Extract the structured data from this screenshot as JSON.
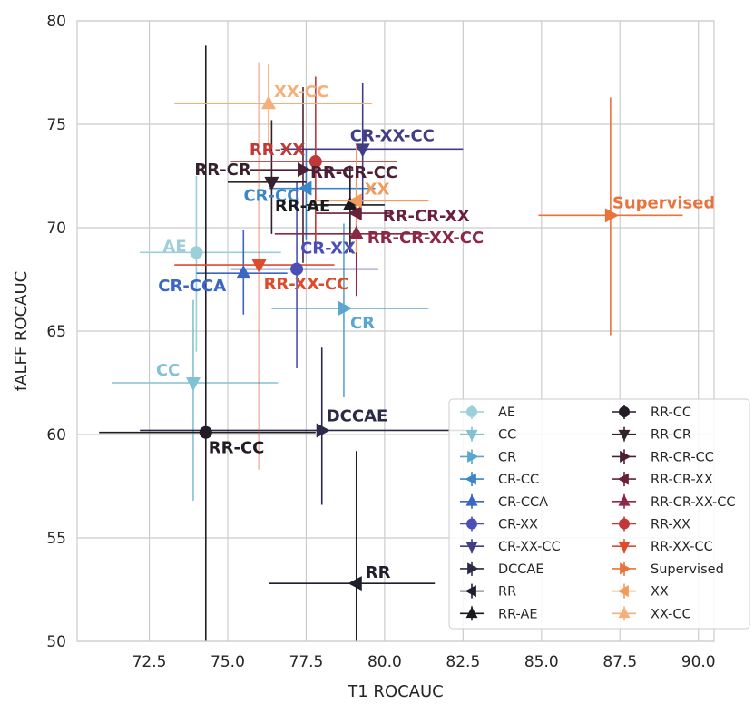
{
  "chart_data": {
    "type": "scatter",
    "title": "",
    "xlabel": "T1 ROCAUC",
    "ylabel": "fALFF ROCAUC",
    "xlim": [
      70.2,
      90.5
    ],
    "ylim": [
      50,
      80
    ],
    "xticks": [
      "72.5",
      "75.0",
      "77.5",
      "80.0",
      "82.5",
      "85.0",
      "87.5",
      "90.0"
    ],
    "yticks": [
      "50",
      "55",
      "60",
      "65",
      "70",
      "75",
      "80"
    ],
    "grid": true,
    "legend_position": "bottom-right",
    "series": [
      {
        "name": "AE",
        "label": "AE",
        "marker": "circle",
        "color": "#9ccfd8",
        "x": 74.0,
        "y": 68.8,
        "xerr": [
          72.2,
          76.7
        ],
        "yerr": [
          64.0,
          72.5
        ]
      },
      {
        "name": "CC",
        "label": "CC",
        "marker": "triangle-down",
        "color": "#83c0d2",
        "x": 73.9,
        "y": 62.5,
        "xerr": [
          71.3,
          76.6
        ],
        "yerr": [
          56.8,
          66.5
        ]
      },
      {
        "name": "CR",
        "label": "CR",
        "marker": "triangle-right",
        "color": "#5aa6d0",
        "x": 78.7,
        "y": 66.1,
        "xerr": [
          76.4,
          81.4
        ],
        "yerr": [
          61.8,
          70.2
        ]
      },
      {
        "name": "CR-CC",
        "label": "CR-CC",
        "marker": "triangle-left",
        "color": "#3b86c8",
        "x": 77.5,
        "y": 71.9,
        "xerr": [
          76.3,
          79.7
        ],
        "yerr": [
          69.4,
          73.8
        ]
      },
      {
        "name": "CR-CCA",
        "label": "CR-CCA",
        "marker": "triangle-up",
        "color": "#3a66c4",
        "x": 75.5,
        "y": 67.8,
        "xerr": [
          74.0,
          76.9
        ],
        "yerr": [
          65.8,
          69.9
        ]
      },
      {
        "name": "CR-XX",
        "label": "CR-XX",
        "marker": "circle",
        "color": "#4b4fb5",
        "x": 77.2,
        "y": 68.0,
        "xerr": [
          75.1,
          79.8
        ],
        "yerr": [
          63.2,
          72.2
        ]
      },
      {
        "name": "CR-XX-CC",
        "label": "CR-XX-CC",
        "marker": "triangle-down",
        "color": "#413e86",
        "x": 79.3,
        "y": 73.8,
        "xerr": [
          76.7,
          82.5
        ],
        "yerr": [
          71.1,
          77.0
        ]
      },
      {
        "name": "DCCAE",
        "label": "DCCAE",
        "marker": "triangle-right",
        "color": "#2b2a48",
        "x": 78.0,
        "y": 60.2,
        "xerr": [
          72.2,
          82.6
        ],
        "yerr": [
          56.6,
          64.2
        ]
      },
      {
        "name": "RR",
        "label": "RR",
        "marker": "triangle-left",
        "color": "#1e1e2c",
        "x": 79.1,
        "y": 52.8,
        "xerr": [
          76.3,
          81.6
        ],
        "yerr": [
          50.0,
          59.2
        ]
      },
      {
        "name": "RR-AE",
        "label": "RR-AE",
        "marker": "triangle-up",
        "color": "#1a1a1e",
        "x": 78.9,
        "y": 71.1,
        "xerr": [
          77.5,
          80.0
        ],
        "yerr": [
          68.8,
          73.0
        ]
      },
      {
        "name": "RR-CC",
        "label": "RR-CC",
        "marker": "circle",
        "color": "#231c24",
        "x": 74.3,
        "y": 60.1,
        "xerr": [
          70.9,
          77.8
        ],
        "yerr": [
          50.0,
          78.8
        ]
      },
      {
        "name": "RR-CR",
        "label": "RR-CR",
        "marker": "triangle-down",
        "color": "#35202c",
        "x": 76.4,
        "y": 72.2,
        "xerr": [
          75.0,
          77.5
        ],
        "yerr": [
          69.7,
          75.2
        ]
      },
      {
        "name": "RR-CR-CC",
        "label": "RR-CR-CC",
        "marker": "triangle-right",
        "color": "#4c2034",
        "x": 77.4,
        "y": 72.8,
        "xerr": [
          75.7,
          79.0
        ],
        "yerr": [
          68.3,
          76.8
        ]
      },
      {
        "name": "RR-CR-XX",
        "label": "RR-CR-XX",
        "marker": "triangle-left",
        "color": "#68203c",
        "x": 79.1,
        "y": 70.7,
        "xerr": [
          77.8,
          80.3
        ],
        "yerr": [
          68.3,
          72.8
        ]
      },
      {
        "name": "RR-CR-XX-CC",
        "label": "RR-CR-XX-CC",
        "marker": "triangle-up",
        "color": "#8c2745",
        "x": 79.1,
        "y": 69.7,
        "xerr": [
          76.5,
          81.4
        ],
        "yerr": [
          66.7,
          72.6
        ]
      },
      {
        "name": "RR-XX",
        "label": "RR-XX",
        "marker": "circle",
        "color": "#c13838",
        "x": 77.8,
        "y": 73.2,
        "xerr": [
          75.1,
          80.4
        ],
        "yerr": [
          69.2,
          77.3
        ]
      },
      {
        "name": "RR-XX-CC",
        "label": "RR-XX-CC",
        "marker": "triangle-down",
        "color": "#dd4b2c",
        "x": 76.0,
        "y": 68.2,
        "xerr": [
          73.3,
          78.4
        ],
        "yerr": [
          58.3,
          78.0
        ]
      },
      {
        "name": "Supervised",
        "label": "Supervised",
        "marker": "triangle-right",
        "color": "#e9733a",
        "x": 87.2,
        "y": 70.6,
        "xerr": [
          84.9,
          89.5
        ],
        "yerr": [
          64.8,
          76.3
        ]
      },
      {
        "name": "XX",
        "label": "XX",
        "marker": "triangle-left",
        "color": "#f19c5d",
        "x": 79.1,
        "y": 71.3,
        "xerr": [
          77.7,
          81.4
        ],
        "yerr": [
          68.8,
          74.0
        ]
      },
      {
        "name": "XX-CC",
        "label": "XX-CC",
        "marker": "triangle-up",
        "color": "#f5b07a",
        "x": 76.3,
        "y": 76.0,
        "xerr": [
          73.3,
          79.6
        ],
        "yerr": [
          73.9,
          77.9
        ]
      }
    ]
  }
}
